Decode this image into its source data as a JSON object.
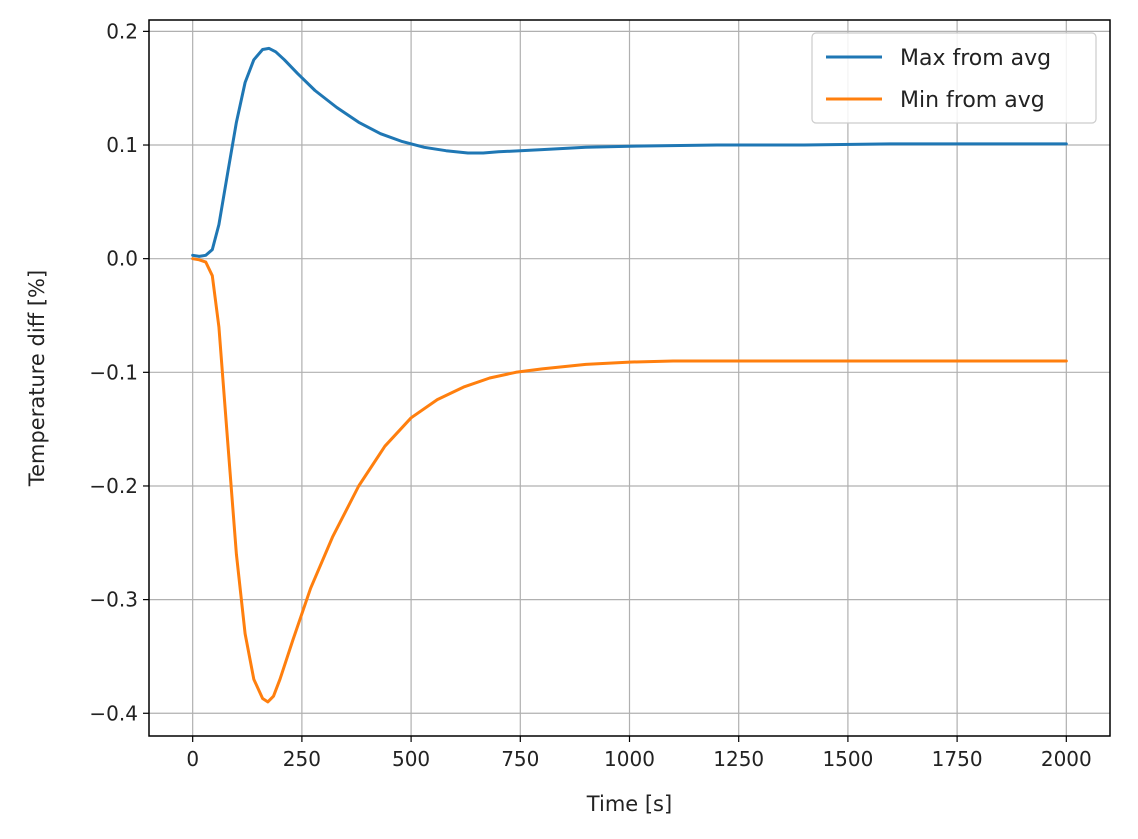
{
  "chart_data": {
    "type": "line",
    "title": "",
    "xlabel": "Time [s]",
    "ylabel": "Temperature diff [%]",
    "xlim": [
      -100,
      2100
    ],
    "ylim": [
      -0.42,
      0.21
    ],
    "xticks": [
      0,
      250,
      500,
      750,
      1000,
      1250,
      1500,
      1750,
      2000
    ],
    "xtick_labels": [
      "0",
      "250",
      "500",
      "750",
      "1000",
      "1250",
      "1500",
      "1750",
      "2000"
    ],
    "yticks": [
      -0.4,
      -0.3,
      -0.2,
      -0.1,
      0.0,
      0.1,
      0.2
    ],
    "ytick_labels": [
      "−0.4",
      "−0.3",
      "−0.2",
      "−0.1",
      "0.0",
      "0.1",
      "0.2"
    ],
    "grid": true,
    "legend_position": "top-right",
    "series": [
      {
        "name": "Max from avg",
        "color": "#1f77b4",
        "x": [
          0,
          15,
          30,
          45,
          60,
          80,
          100,
          120,
          140,
          160,
          175,
          190,
          210,
          240,
          280,
          330,
          380,
          430,
          480,
          530,
          580,
          630,
          665,
          700,
          800,
          900,
          1000,
          1200,
          1400,
          1600,
          1800,
          2000
        ],
        "y": [
          0.003,
          0.002,
          0.003,
          0.008,
          0.03,
          0.075,
          0.12,
          0.155,
          0.175,
          0.184,
          0.185,
          0.182,
          0.175,
          0.163,
          0.148,
          0.133,
          0.12,
          0.11,
          0.103,
          0.098,
          0.095,
          0.093,
          0.093,
          0.094,
          0.096,
          0.098,
          0.099,
          0.1,
          0.1,
          0.101,
          0.101,
          0.101
        ]
      },
      {
        "name": "Min from avg",
        "color": "#ff7f0e",
        "x": [
          0,
          15,
          30,
          45,
          60,
          80,
          100,
          120,
          140,
          160,
          172,
          185,
          200,
          230,
          270,
          320,
          380,
          440,
          500,
          560,
          620,
          680,
          740,
          800,
          900,
          1000,
          1100,
          1250,
          1500,
          1750,
          2000
        ],
        "y": [
          0.0,
          -0.001,
          -0.003,
          -0.015,
          -0.06,
          -0.16,
          -0.26,
          -0.33,
          -0.37,
          -0.387,
          -0.39,
          -0.385,
          -0.37,
          -0.335,
          -0.29,
          -0.245,
          -0.2,
          -0.165,
          -0.14,
          -0.124,
          -0.113,
          -0.105,
          -0.1,
          -0.097,
          -0.093,
          -0.091,
          -0.09,
          -0.09,
          -0.09,
          -0.09,
          -0.09
        ]
      }
    ]
  }
}
